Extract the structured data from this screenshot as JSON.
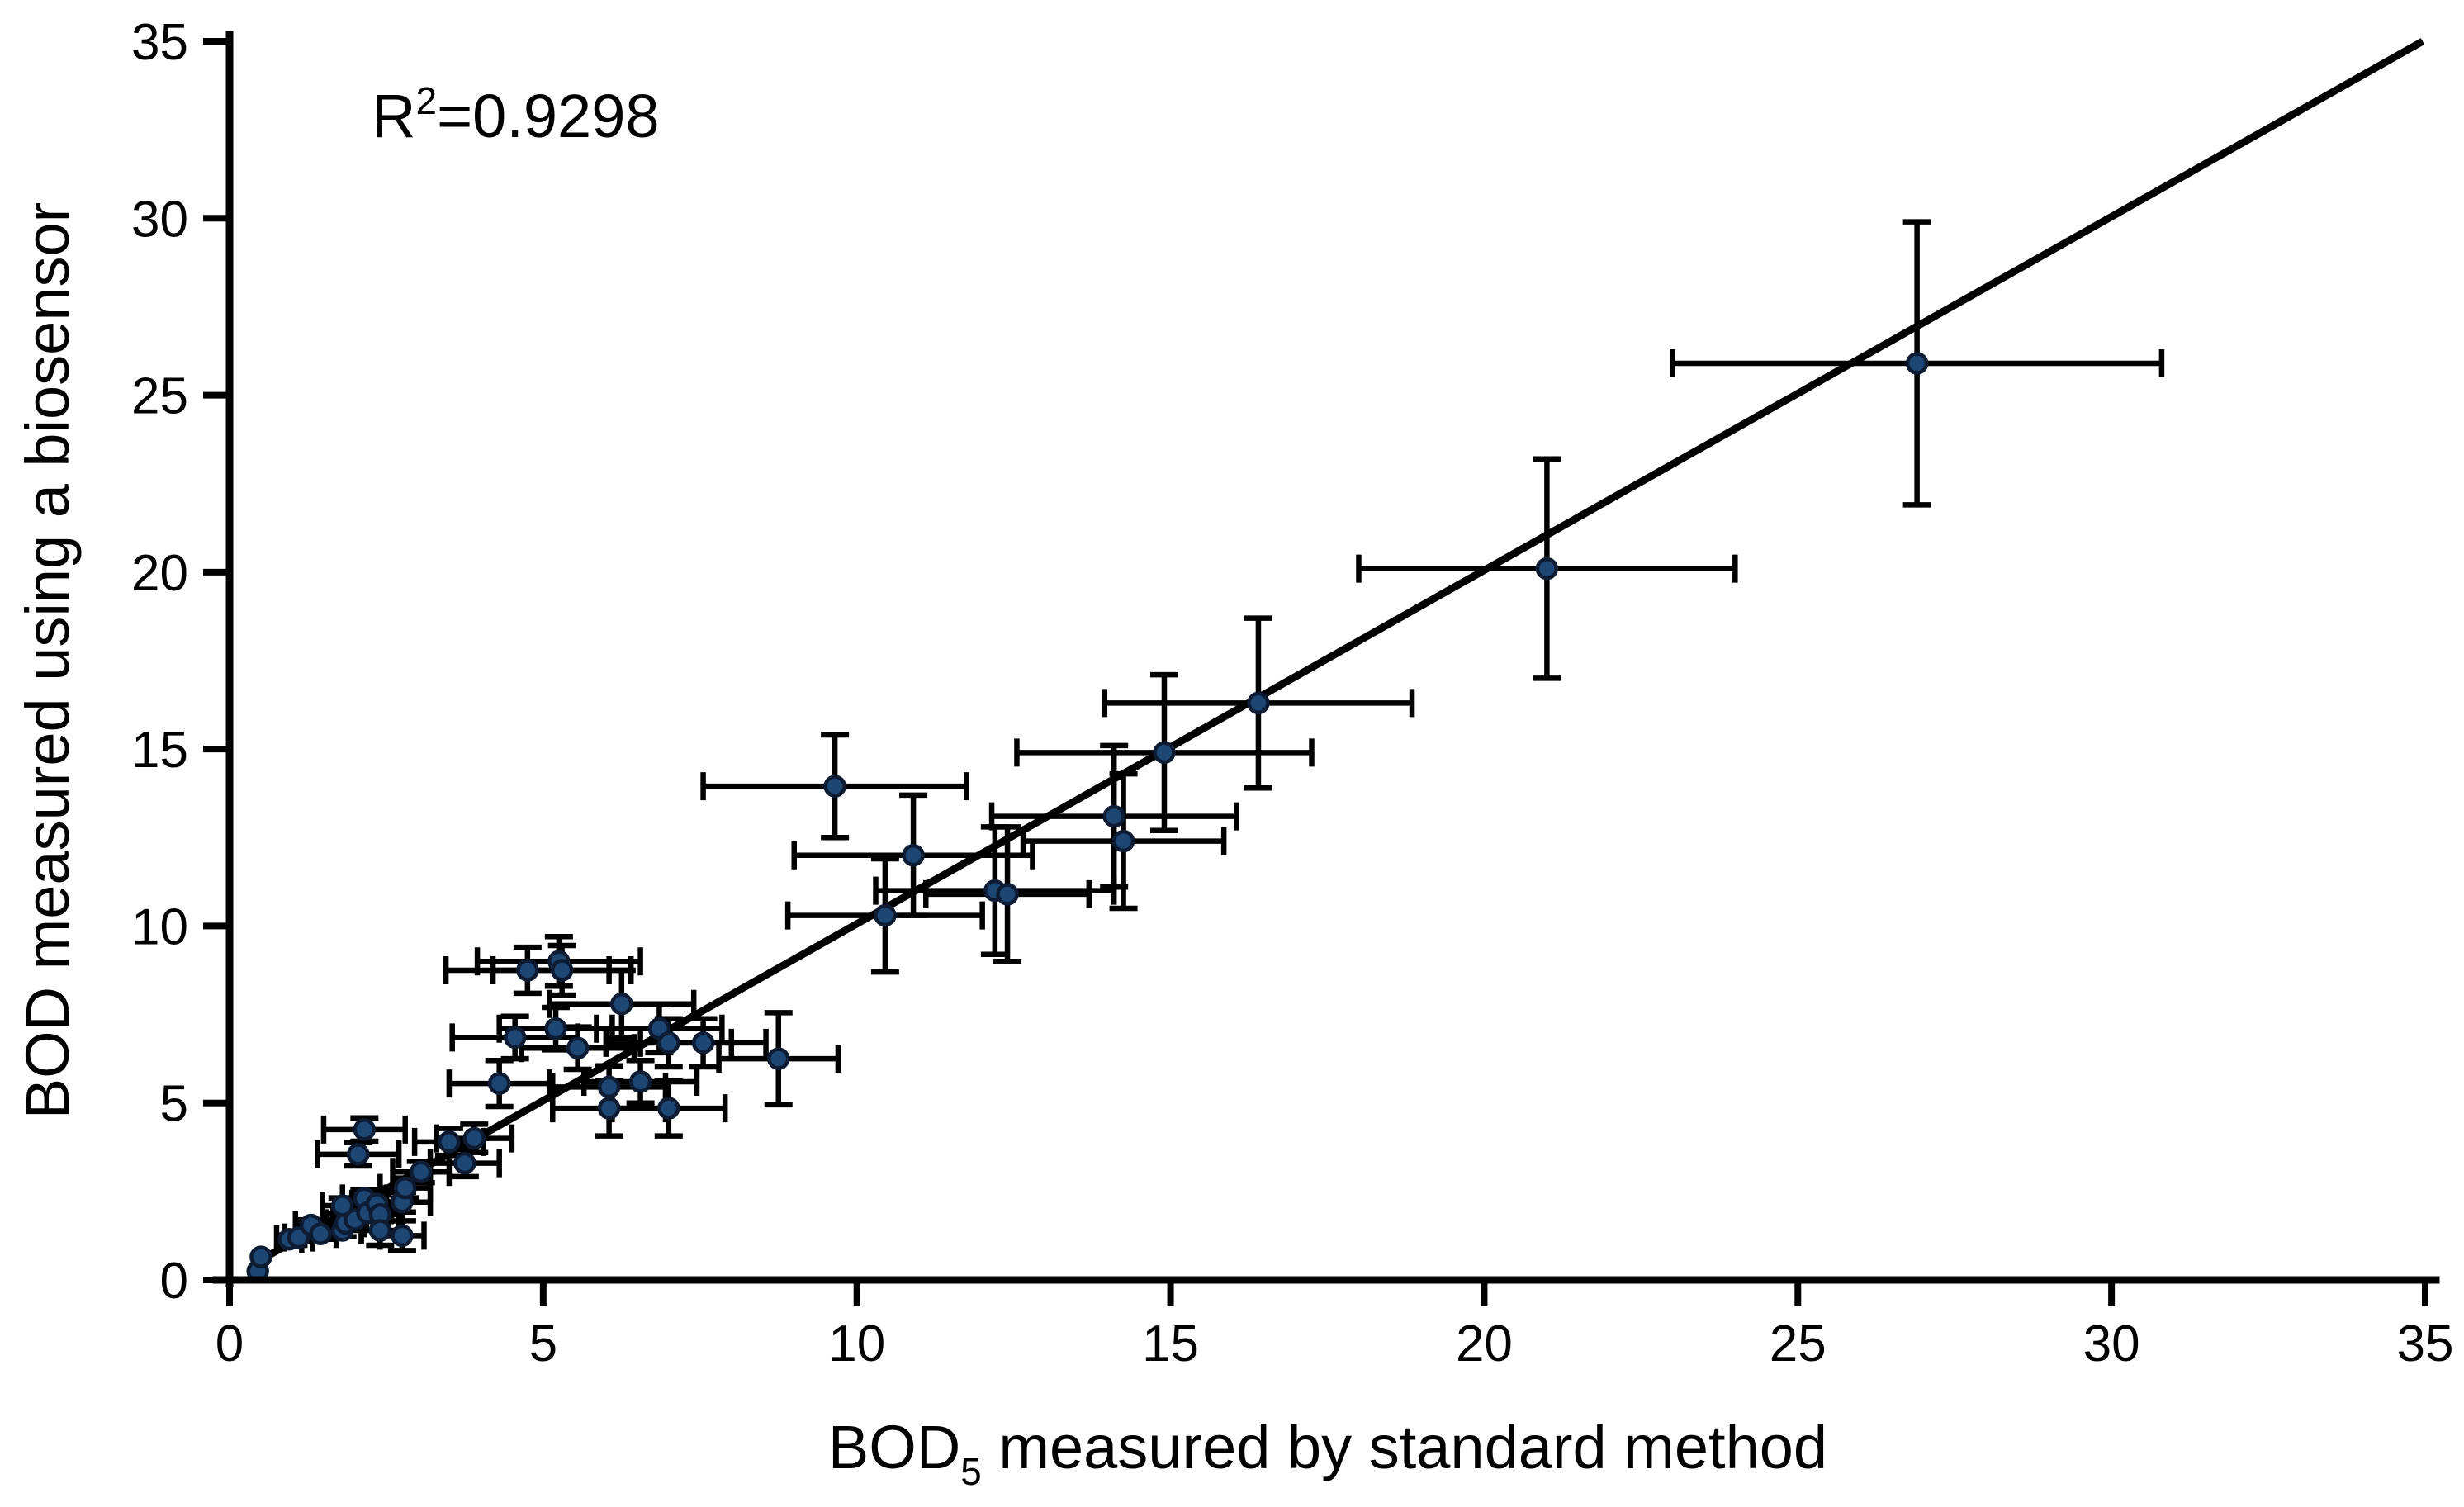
{
  "figure": {
    "background": "#ffffff",
    "text_color": "#000000",
    "axis_color": "#000000",
    "trendline_color": "#000000",
    "errorbar_color": "#000000"
  },
  "chart_data": {
    "type": "scatter",
    "title": "",
    "xlabel_parts": {
      "pre": "BOD",
      "sub": "5",
      "post": " measured by standard method"
    },
    "ylabel": "BOD measured using a biosensor",
    "annotation_parts": {
      "base": "R",
      "sup": "2",
      "rest": "=0.9298"
    },
    "r_squared": 0.9298,
    "xlim": [
      0,
      35
    ],
    "ylim": [
      0,
      35
    ],
    "x_ticks": [
      0,
      5,
      10,
      15,
      20,
      25,
      30,
      35
    ],
    "y_ticks": [
      0,
      5,
      10,
      15,
      20,
      25,
      30,
      35
    ],
    "grid": false,
    "legend": "none",
    "marker_color": "#1e4673",
    "marker_edge_color": "#0d1b33",
    "trendline": {
      "x1": 0.6,
      "y1": 0.67,
      "x2": 34.96,
      "y2": 35.0
    },
    "points_format": [
      "x",
      "y",
      "x_err",
      "y_err"
    ],
    "points": [
      [
        0.45,
        0.25,
        0,
        0
      ],
      [
        0.5,
        0.65,
        0,
        0
      ],
      [
        0.95,
        1.15,
        0.2,
        0.12
      ],
      [
        1.1,
        1.2,
        0.22,
        0.12
      ],
      [
        1.3,
        1.55,
        0.25,
        0.15
      ],
      [
        1.45,
        1.3,
        0.25,
        0.15
      ],
      [
        1.8,
        1.4,
        0.3,
        0.18
      ],
      [
        1.85,
        1.6,
        0.3,
        0.18
      ],
      [
        1.8,
        2.1,
        0.32,
        0.22
      ],
      [
        2.0,
        1.7,
        0.35,
        0.2
      ],
      [
        2.15,
        2.3,
        0.35,
        0.25
      ],
      [
        2.2,
        1.9,
        0.32,
        0.2
      ],
      [
        2.35,
        2.15,
        0.4,
        0.25
      ],
      [
        2.4,
        1.85,
        0.35,
        0.2
      ],
      [
        2.4,
        1.4,
        0.3,
        0.42
      ],
      [
        2.75,
        1.25,
        0.35,
        0.42
      ],
      [
        2.75,
        2.2,
        0.45,
        0.28
      ],
      [
        2.8,
        2.6,
        0.4,
        0.28
      ],
      [
        3.05,
        3.05,
        0.45,
        0.3
      ],
      [
        2.05,
        3.55,
        0.65,
        0.33
      ],
      [
        2.15,
        4.25,
        0.65,
        0.33
      ],
      [
        3.5,
        3.9,
        0.55,
        0.38
      ],
      [
        3.75,
        3.3,
        0.55,
        0.38
      ],
      [
        3.9,
        4.0,
        0.6,
        0.4
      ],
      [
        4.3,
        5.55,
        0.8,
        0.65
      ],
      [
        4.55,
        6.85,
        1.0,
        0.6
      ],
      [
        4.75,
        8.75,
        1.3,
        0.65
      ],
      [
        5.25,
        9.0,
        1.3,
        0.7
      ],
      [
        5.3,
        8.75,
        1.1,
        0.7
      ],
      [
        5.2,
        7.1,
        0.9,
        0.6
      ],
      [
        5.55,
        6.55,
        0.9,
        0.6
      ],
      [
        6.05,
        5.45,
        0.9,
        0.6
      ],
      [
        6.05,
        4.85,
        0.9,
        0.78
      ],
      [
        6.25,
        7.8,
        1.15,
        0.95
      ],
      [
        6.55,
        5.6,
        0.9,
        0.6
      ],
      [
        6.85,
        7.1,
        1.0,
        0.68
      ],
      [
        7.0,
        6.7,
        1.0,
        0.68
      ],
      [
        7.0,
        4.85,
        0.9,
        0.78
      ],
      [
        7.55,
        6.7,
        1.0,
        0.68
      ],
      [
        8.75,
        6.25,
        0.95,
        1.3
      ],
      [
        9.65,
        13.95,
        2.1,
        1.45
      ],
      [
        10.45,
        10.3,
        1.55,
        1.6
      ],
      [
        10.9,
        12.0,
        1.9,
        1.7
      ],
      [
        12.2,
        11.0,
        1.9,
        1.8
      ],
      [
        12.4,
        10.9,
        1.3,
        1.9
      ],
      [
        14.1,
        13.1,
        1.95,
        2.0
      ],
      [
        14.25,
        12.4,
        1.6,
        1.9
      ],
      [
        14.9,
        14.9,
        2.35,
        2.2
      ],
      [
        16.4,
        16.3,
        2.45,
        2.4
      ],
      [
        21.0,
        20.1,
        3.0,
        3.1
      ],
      [
        26.9,
        25.9,
        3.9,
        4.0
      ]
    ]
  }
}
